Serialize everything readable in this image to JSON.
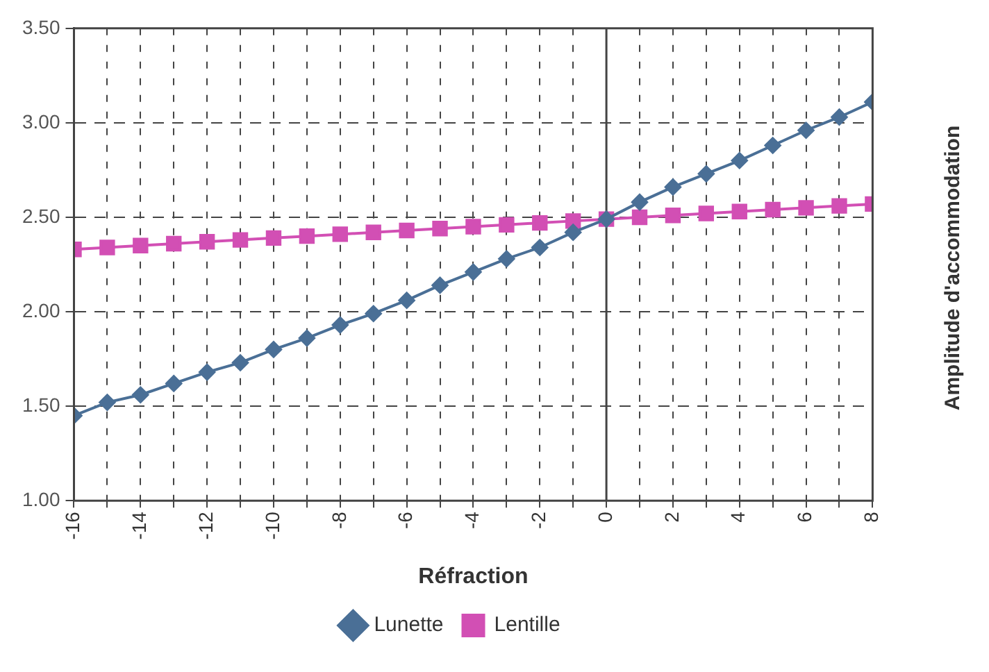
{
  "chart_data": {
    "type": "line",
    "xlabel": "Réfraction",
    "ylabel": "Amplitude d'accommodation",
    "x": [
      -16,
      -15,
      -14,
      -13,
      -12,
      -11,
      -10,
      -9,
      -8,
      -7,
      -6,
      -5,
      -4,
      -3,
      -2,
      -1,
      0,
      1,
      2,
      3,
      4,
      5,
      6,
      7,
      8
    ],
    "xlim": [
      -16,
      8
    ],
    "xticks": [
      -16,
      {
        "value": -15,
        "label": null
      },
      -14,
      {
        "value": -13,
        "label": null
      },
      -12,
      {
        "value": -11,
        "label": null
      },
      -10,
      {
        "value": -9,
        "label": null
      },
      -8,
      {
        "value": -7,
        "label": null
      },
      -6,
      {
        "value": -5,
        "label": null
      },
      -4,
      {
        "value": -3,
        "label": null
      },
      -2,
      {
        "value": -1,
        "label": null
      },
      0,
      {
        "value": 1,
        "label": null
      },
      2,
      {
        "value": 3,
        "label": null
      },
      4,
      {
        "value": 5,
        "label": null
      },
      6,
      {
        "value": 7,
        "label": null
      },
      8
    ],
    "series": [
      {
        "name": "Lunette",
        "color": "#4a6f96",
        "marker": "diamond",
        "values": [
          1.45,
          1.52,
          1.56,
          1.62,
          1.68,
          1.73,
          1.8,
          1.86,
          1.93,
          1.99,
          2.06,
          2.14,
          2.21,
          2.28,
          2.34,
          2.42,
          2.49,
          2.58,
          2.66,
          2.73,
          2.8,
          2.88,
          2.96,
          3.03,
          3.11
        ]
      },
      {
        "name": "Lentille",
        "color": "#d24fb4",
        "marker": "square",
        "values": [
          2.33,
          2.34,
          2.35,
          2.36,
          2.37,
          2.38,
          2.39,
          2.4,
          2.41,
          2.42,
          2.43,
          2.44,
          2.45,
          2.46,
          2.47,
          2.48,
          2.49,
          2.5,
          2.51,
          2.52,
          2.53,
          2.54,
          2.55,
          2.56,
          2.57
        ]
      }
    ],
    "ylim": [
      1,
      3.5
    ],
    "yticks": [
      {
        "value": 1,
        "label": "1.00"
      },
      {
        "value": 1.5,
        "label": "1.50"
      },
      {
        "value": 2,
        "label": "2.00"
      },
      {
        "value": 2.5,
        "label": "2.50"
      },
      {
        "value": 3,
        "label": "3.00"
      },
      {
        "value": 3.5,
        "label": "3.50"
      }
    ],
    "ref_lines": [
      {
        "axis": "x",
        "value": 0,
        "color": "#444444"
      }
    ],
    "grid": true,
    "legend": "bottom"
  }
}
